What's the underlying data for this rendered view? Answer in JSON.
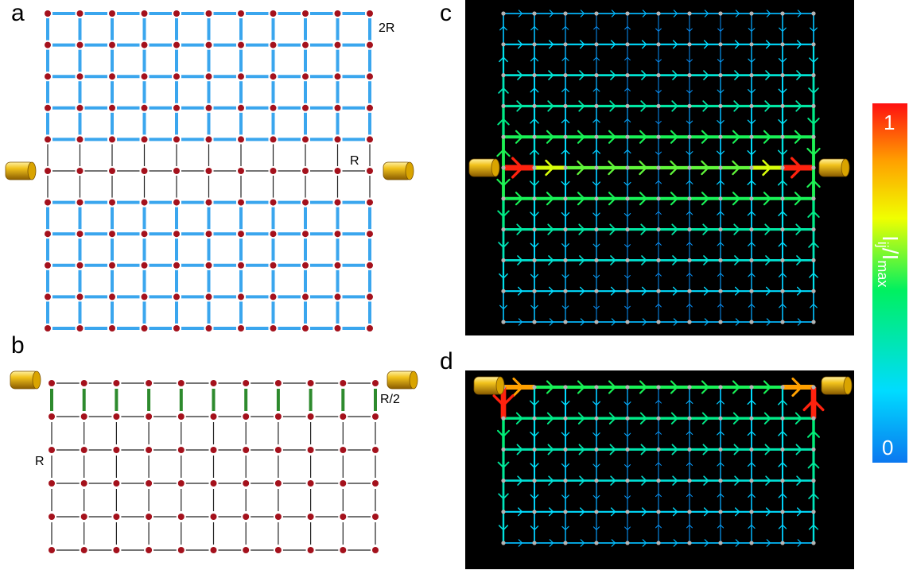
{
  "panels": {
    "a": {
      "label": "a",
      "rows": 11,
      "cols": 11,
      "label_top": "2R",
      "label_mid": "R"
    },
    "b": {
      "label": "b",
      "rows": 6,
      "cols": 11,
      "label_top": "R/2",
      "label_side": "R"
    },
    "c": {
      "label": "c",
      "rows": 11,
      "cols": 11
    },
    "d": {
      "label": "d",
      "rows": 6,
      "cols": 11
    }
  },
  "colorbar": {
    "max_label": "1",
    "min_label": "0",
    "title": "I",
    "title_sub": "ij",
    "title_sep": "/I",
    "title_sub2": "max"
  },
  "colors": {
    "node_red": "#a4111c",
    "node_grey": "#b4b4b4",
    "wire_blue": "#3aa6ee",
    "wire_black": "#222222",
    "wire_green": "#2d8a2d",
    "panel_bg": "#000000",
    "electrode": "#e0a800"
  }
}
